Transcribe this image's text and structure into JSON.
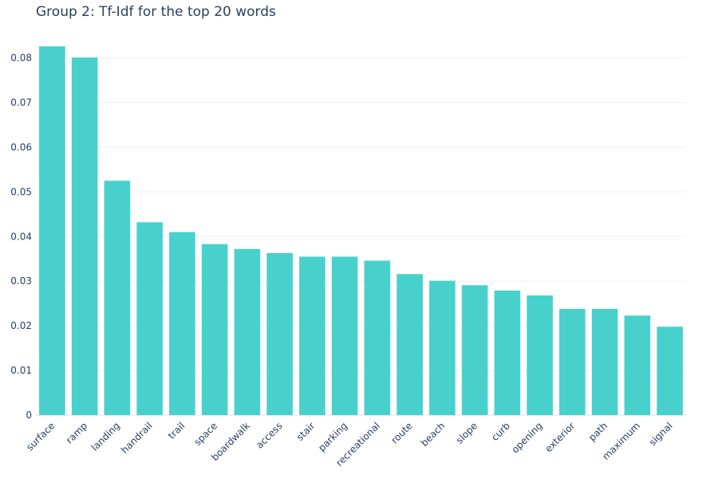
{
  "chart_data": {
    "type": "bar",
    "title": "Group 2: Tf-Idf for the top 20 words",
    "xlabel": "",
    "ylabel": "",
    "categories": [
      "surface",
      "ramp",
      "landing",
      "handrail",
      "trail",
      "space",
      "boardwalk",
      "access",
      "stair",
      "parking",
      "recreational",
      "route",
      "beach",
      "slope",
      "curb",
      "opening",
      "exterior",
      "path",
      "maximum",
      "signal"
    ],
    "values": [
      0.0826,
      0.0801,
      0.0525,
      0.0432,
      0.041,
      0.0383,
      0.0372,
      0.0363,
      0.0355,
      0.0355,
      0.0346,
      0.0316,
      0.0301,
      0.0291,
      0.0279,
      0.0268,
      0.0238,
      0.0238,
      0.0223,
      0.0198
    ],
    "ylim": [
      0,
      0.0835
    ],
    "yticks": [
      0,
      0.01,
      0.02,
      0.03,
      0.04,
      0.05,
      0.06,
      0.07,
      0.08
    ],
    "ytick_labels": [
      "0",
      "0.01",
      "0.02",
      "0.03",
      "0.04",
      "0.05",
      "0.06",
      "0.07",
      "0.08"
    ],
    "grid": true,
    "colors": {
      "bar": "#48d1cc",
      "text": "#2a3f5f",
      "grid": "#ebf0f8"
    }
  }
}
